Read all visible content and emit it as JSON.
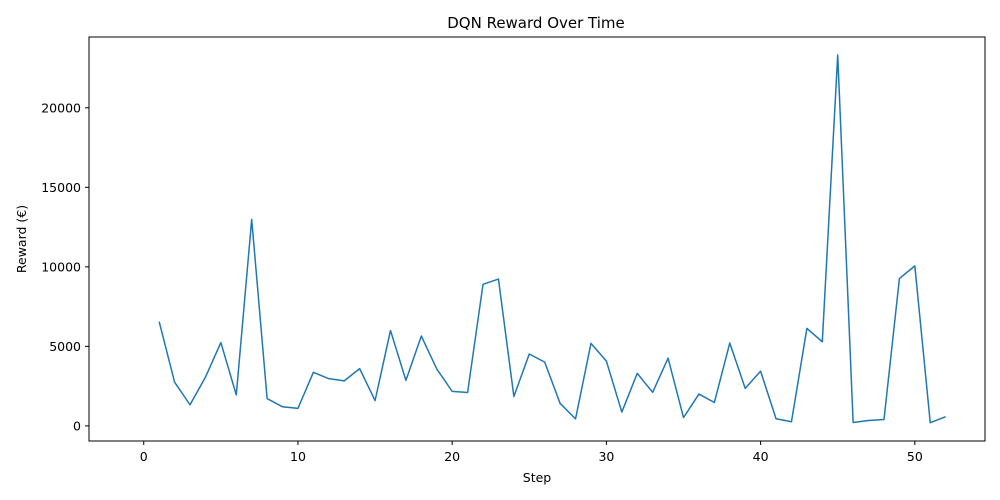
{
  "chart_data": {
    "type": "line",
    "title": "DQN Reward Over Time",
    "xlabel": "Step",
    "ylabel": "Reward (€)",
    "xlim": [
      -3.55,
      54.55
    ],
    "ylim": [
      -950,
      24450
    ],
    "x_ticks": [
      0,
      10,
      20,
      30,
      40,
      50
    ],
    "y_ticks": [
      0,
      5000,
      10000,
      15000,
      20000
    ],
    "grid": false,
    "legend": "none",
    "line_color": "#1f77b4",
    "series": [
      {
        "x": [
          1,
          2,
          3,
          4,
          5,
          6,
          7,
          8,
          9,
          10,
          11,
          12,
          13,
          14,
          15,
          16,
          17,
          18,
          19,
          20,
          21,
          22,
          23,
          24,
          25,
          26,
          27,
          28,
          29,
          30,
          31,
          32,
          33,
          34,
          35,
          36,
          37,
          38,
          39,
          40,
          41,
          42,
          43,
          44,
          45,
          46,
          47,
          48,
          49,
          50,
          51,
          52
        ],
        "values": [
          6550,
          2750,
          1330,
          3060,
          5240,
          1950,
          12980,
          1720,
          1200,
          1100,
          3370,
          2970,
          2830,
          3600,
          1590,
          6000,
          2860,
          5650,
          3580,
          2170,
          2100,
          8900,
          9230,
          1850,
          4520,
          4010,
          1410,
          440,
          5190,
          4070,
          870,
          3300,
          2110,
          4260,
          520,
          2000,
          1470,
          5210,
          2360,
          3440,
          450,
          260,
          6130,
          5290,
          23320,
          210,
          340,
          400,
          9260,
          10060,
          200,
          580
        ]
      }
    ]
  }
}
